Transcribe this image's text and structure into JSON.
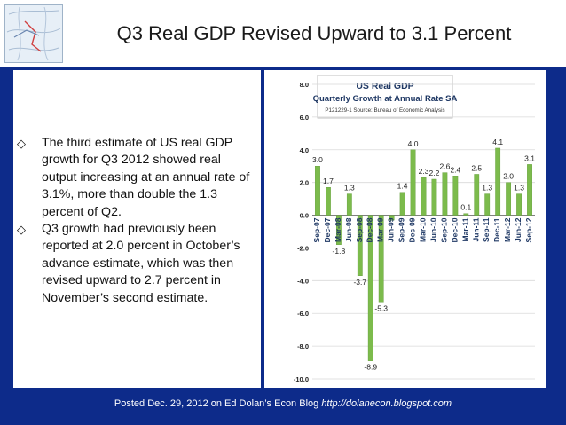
{
  "slide": {
    "title": "Q3 Real GDP Revised Upward to 3.1 Percent",
    "bullets": [
      "The third estimate of US real GDP growth for Q3 2012 showed real output increasing at an annual rate of 3.1%, more than double the 1.3 percent of Q2.",
      "Q3 growth had previously been reported at 2.0 percent in October’s advance estimate, which was then revised upward to 2.7 percent in November’s second estimate."
    ],
    "bullet_icon": "diamond-outline-icon",
    "footer_text": "Posted Dec. 29, 2012 on Ed Dolan’s Econ Blog",
    "footer_url": "http://dolanecon.blogspot.com",
    "colors": {
      "band": "#0d2b8a",
      "bar": "#7cbb4c",
      "chart_title": "#1f3864"
    }
  },
  "chart_data": {
    "type": "bar",
    "title": "US Real GDP",
    "subtitle": "Quarterly Growth at Annual Rate SA",
    "note": "P121229-1 Source: Bureau of Economic Analysis",
    "categories": [
      "Sep-07",
      "Dec-07",
      "Mar-08",
      "Jun-08",
      "Sep-08",
      "Dec-08",
      "Mar-09",
      "Jun-09",
      "Sep-09",
      "Dec-09",
      "Mar-10",
      "Jun-10",
      "Sep-10",
      "Dec-10",
      "Mar-11",
      "Jun-11",
      "Sep-11",
      "Dec-11",
      "Mar-12",
      "Jun-12",
      "Sep-12"
    ],
    "values": [
      3.0,
      1.7,
      -1.8,
      1.3,
      -3.7,
      -8.9,
      -5.3,
      -0.3,
      1.4,
      4.0,
      2.3,
      2.2,
      2.6,
      2.4,
      0.1,
      2.5,
      1.3,
      4.1,
      2.0,
      1.3,
      3.1
    ],
    "value_labels": [
      "3.0",
      "1.7",
      "-1.8",
      "1.3",
      "-3.7",
      "-8.9",
      "-5.3",
      "",
      "1.4",
      "4.0",
      "2.3",
      "2.2",
      "2.6",
      "2.4",
      "0.1",
      "2.5",
      "1.3",
      "4.1",
      "2.0",
      "1.3",
      "3.1"
    ],
    "ylim": [
      -10.0,
      8.0
    ],
    "yticks": [
      "8.0",
      "6.0",
      "4.0",
      "2.0",
      "0.0",
      "-2.0",
      "-4.0",
      "-6.0",
      "-8.0",
      "-10.0"
    ],
    "ytick_values": [
      8,
      6,
      4,
      2,
      0,
      -2,
      -4,
      -6,
      -8,
      -10
    ],
    "grid": true,
    "legend": "none"
  }
}
